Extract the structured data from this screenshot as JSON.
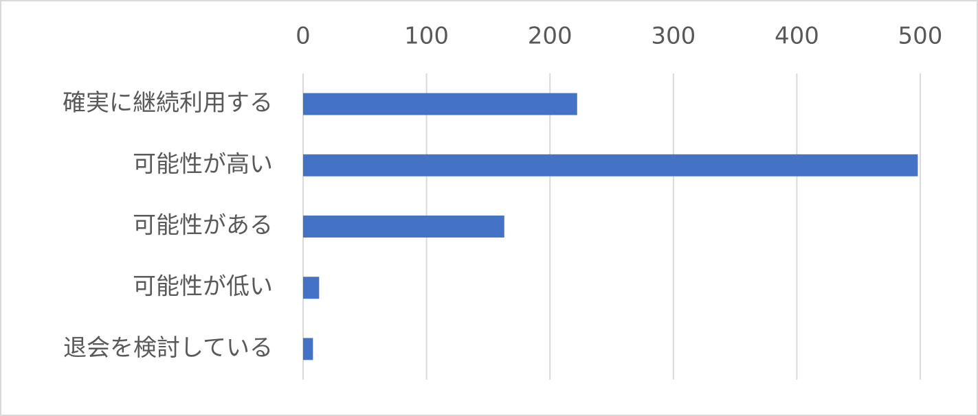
{
  "chart_data": {
    "type": "bar",
    "orientation": "horizontal",
    "categories": [
      "確実に継続利用する",
      "可能性が高い",
      "可能性がある",
      "可能性が低い",
      "退会を検討している"
    ],
    "values": [
      222,
      498,
      163,
      13,
      8
    ],
    "color": "#4472c4",
    "xlim": [
      0,
      500
    ],
    "xticks": [
      0,
      100,
      200,
      300,
      400,
      500
    ],
    "grid": true
  }
}
